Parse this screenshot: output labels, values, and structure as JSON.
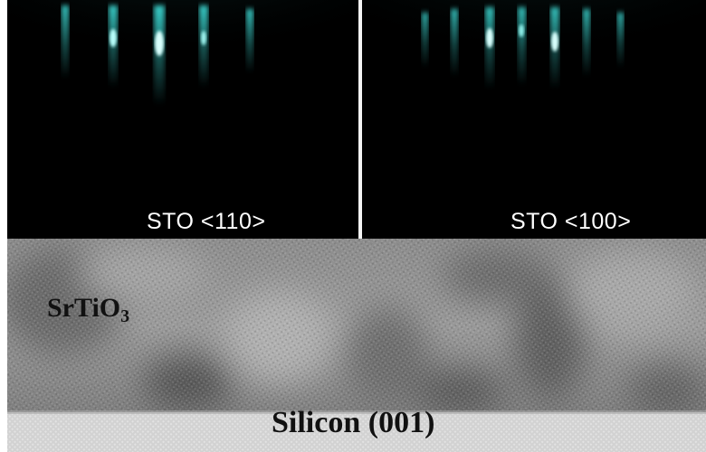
{
  "rheed_panels": [
    {
      "label": "STO <110>",
      "streak_count": 5
    },
    {
      "label": "STO <100>",
      "streak_count": 7
    }
  ],
  "tem_image": {
    "film_label_main": "SrTiO",
    "film_label_subscript": "3",
    "substrate_label": "Silicon (001)"
  },
  "colors": {
    "rheed_background": "#000000",
    "rheed_streak": "#3fe6e0",
    "rheed_label_text": "#ffffff",
    "tem_film_gray": "#8a8a8a",
    "tem_substrate_gray": "#d2d2d2",
    "tem_label_text": "#111111"
  }
}
